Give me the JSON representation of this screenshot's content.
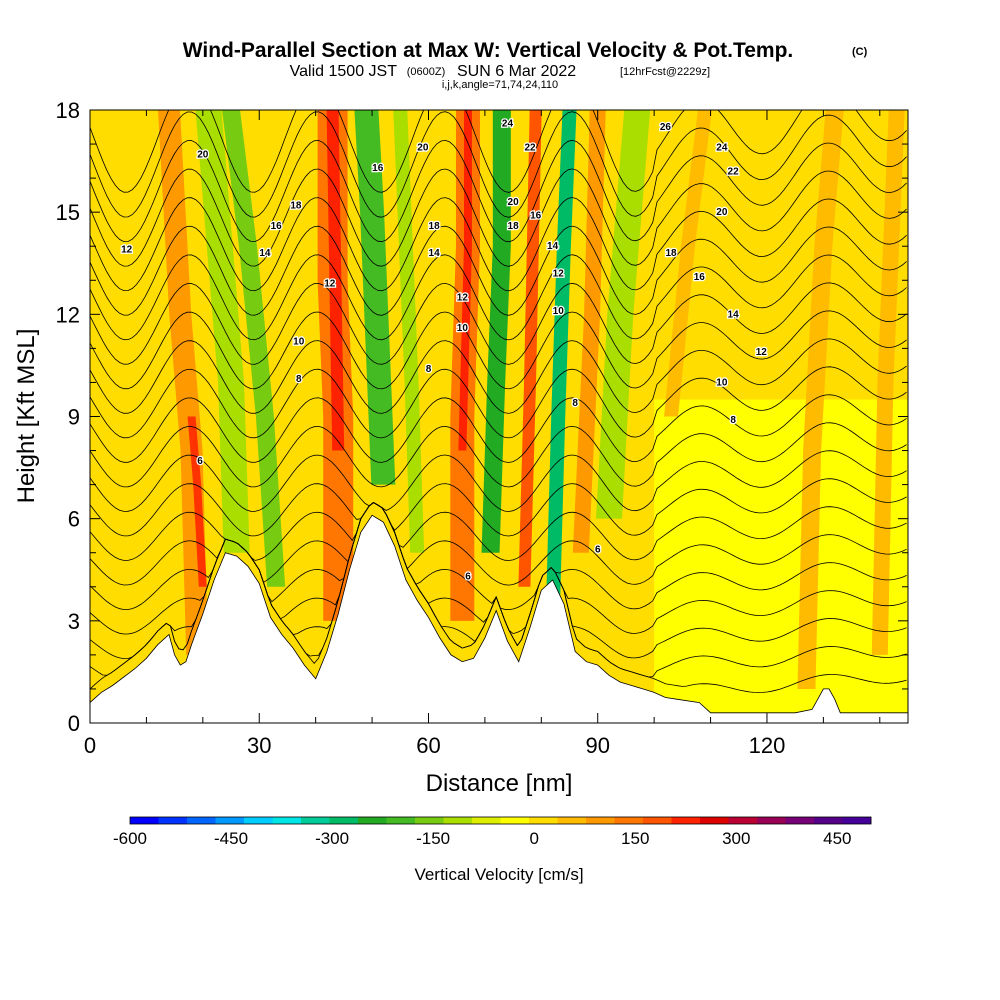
{
  "title": {
    "main": "Wind-Parallel Section at Max W: Vertical Velocity & Pot.Temp.",
    "copyright": "(C)",
    "valid_prefix": "Valid 1500 JST",
    "valid_zulu": "(0600Z)",
    "valid_date": "SUN 6 Mar 2022",
    "forecast": "[12hrFcst@2229z]",
    "indices": "i,j,k,angle=71,74,24,110"
  },
  "chart_data": {
    "type": "heatmap",
    "xlabel": "Distance [nm]",
    "ylabel": "Height [Kft MSL]",
    "xlim": [
      0,
      145
    ],
    "ylim": [
      0,
      18
    ],
    "xticks": [
      0,
      30,
      60,
      90,
      120
    ],
    "yticks": [
      0,
      3,
      6,
      9,
      12,
      15,
      18
    ],
    "terrain_kft": [
      [
        0,
        0.6
      ],
      [
        2,
        0.9
      ],
      [
        4,
        1.1
      ],
      [
        6,
        1.35
      ],
      [
        8,
        1.6
      ],
      [
        10,
        1.9
      ],
      [
        12,
        2.3
      ],
      [
        14,
        2.6
      ],
      [
        15,
        2.0
      ],
      [
        16,
        1.7
      ],
      [
        17,
        1.8
      ],
      [
        18,
        2.3
      ],
      [
        20,
        3.2
      ],
      [
        22,
        4.2
      ],
      [
        24,
        5.0
      ],
      [
        26,
        4.9
      ],
      [
        28,
        4.6
      ],
      [
        30,
        4.1
      ],
      [
        32,
        3.1
      ],
      [
        34,
        2.6
      ],
      [
        36,
        2.2
      ],
      [
        38,
        1.7
      ],
      [
        40,
        1.3
      ],
      [
        42,
        2.1
      ],
      [
        44,
        3.2
      ],
      [
        46,
        4.5
      ],
      [
        48,
        5.6
      ],
      [
        50,
        6.1
      ],
      [
        52,
        5.9
      ],
      [
        54,
        5.2
      ],
      [
        56,
        4.2
      ],
      [
        58,
        3.6
      ],
      [
        60,
        3.1
      ],
      [
        62,
        2.5
      ],
      [
        64,
        2.0
      ],
      [
        66,
        1.8
      ],
      [
        68,
        1.9
      ],
      [
        70,
        2.5
      ],
      [
        72,
        3.3
      ],
      [
        74,
        2.4
      ],
      [
        76,
        1.8
      ],
      [
        78,
        2.8
      ],
      [
        80,
        3.9
      ],
      [
        82,
        4.2
      ],
      [
        84,
        3.5
      ],
      [
        86,
        2.1
      ],
      [
        88,
        1.8
      ],
      [
        90,
        1.7
      ],
      [
        92,
        1.4
      ],
      [
        94,
        1.2
      ],
      [
        96,
        1.1
      ],
      [
        98,
        1.0
      ],
      [
        100,
        0.9
      ],
      [
        102,
        0.75
      ],
      [
        104,
        0.7
      ],
      [
        108,
        0.6
      ],
      [
        110,
        0.3
      ],
      [
        116,
        0.3
      ],
      [
        120,
        0.3
      ],
      [
        125,
        0.3
      ],
      [
        128,
        0.4
      ],
      [
        130,
        1.0
      ],
      [
        131,
        1.0
      ],
      [
        132,
        0.7
      ],
      [
        133,
        0.3
      ],
      [
        145,
        0.3
      ]
    ],
    "contour_interval_c": 1,
    "contour_labels": [
      {
        "x": 20,
        "y": 16.7,
        "v": "20"
      },
      {
        "x": 36.5,
        "y": 15.2,
        "v": "18"
      },
      {
        "x": 33,
        "y": 14.6,
        "v": "16"
      },
      {
        "x": 31,
        "y": 13.8,
        "v": "14"
      },
      {
        "x": 6.5,
        "y": 13.9,
        "v": "12"
      },
      {
        "x": 42.5,
        "y": 12.9,
        "v": "12"
      },
      {
        "x": 37,
        "y": 11.2,
        "v": "10"
      },
      {
        "x": 37,
        "y": 10.1,
        "v": "8"
      },
      {
        "x": 19.5,
        "y": 7.7,
        "v": "6"
      },
      {
        "x": 51,
        "y": 16.3,
        "v": "16"
      },
      {
        "x": 59,
        "y": 16.9,
        "v": "20"
      },
      {
        "x": 61,
        "y": 14.6,
        "v": "18"
      },
      {
        "x": 61,
        "y": 13.8,
        "v": "14"
      },
      {
        "x": 66,
        "y": 12.5,
        "v": "12"
      },
      {
        "x": 66,
        "y": 11.6,
        "v": "10"
      },
      {
        "x": 60,
        "y": 10.4,
        "v": "8"
      },
      {
        "x": 74,
        "y": 17.6,
        "v": "24"
      },
      {
        "x": 78,
        "y": 16.9,
        "v": "22"
      },
      {
        "x": 75,
        "y": 15.3,
        "v": "20"
      },
      {
        "x": 75,
        "y": 14.6,
        "v": "18"
      },
      {
        "x": 79,
        "y": 14.9,
        "v": "16"
      },
      {
        "x": 82,
        "y": 14.0,
        "v": "14"
      },
      {
        "x": 83,
        "y": 13.2,
        "v": "12"
      },
      {
        "x": 83,
        "y": 12.1,
        "v": "10"
      },
      {
        "x": 86,
        "y": 9.4,
        "v": "8"
      },
      {
        "x": 90,
        "y": 5.1,
        "v": "6"
      },
      {
        "x": 67,
        "y": 4.3,
        "v": "6"
      },
      {
        "x": 102,
        "y": 17.5,
        "v": "26"
      },
      {
        "x": 112,
        "y": 16.9,
        "v": "24"
      },
      {
        "x": 114,
        "y": 16.2,
        "v": "22"
      },
      {
        "x": 112,
        "y": 15.0,
        "v": "20"
      },
      {
        "x": 103,
        "y": 13.8,
        "v": "18"
      },
      {
        "x": 108,
        "y": 13.1,
        "v": "16"
      },
      {
        "x": 114,
        "y": 12.0,
        "v": "14"
      },
      {
        "x": 119,
        "y": 10.9,
        "v": "12"
      },
      {
        "x": 112,
        "y": 10.0,
        "v": "10"
      },
      {
        "x": 114,
        "y": 8.9,
        "v": "8"
      }
    ],
    "colorbar": {
      "label": "Vertical Velocity [cm/s]",
      "min": -600,
      "max": 500,
      "step": 50,
      "tick_values": [
        -600,
        -450,
        -300,
        -150,
        0,
        150,
        300,
        450
      ],
      "tick_labels": [
        "-600",
        "-450",
        "-300",
        "-150",
        "0",
        "150",
        "300",
        "450"
      ],
      "colors": [
        "#0000ff",
        "#0033ff",
        "#0066ff",
        "#0099ff",
        "#00ccff",
        "#00e5e5",
        "#00cc99",
        "#00bb66",
        "#22aa22",
        "#44bb22",
        "#77cc11",
        "#aadd00",
        "#ddee00",
        "#ffff00",
        "#ffdd00",
        "#ffbb00",
        "#ff9900",
        "#ff7700",
        "#ff5500",
        "#ff2200",
        "#dd0000",
        "#bb0033",
        "#990055",
        "#770077",
        "#550088",
        "#440099"
      ]
    }
  }
}
